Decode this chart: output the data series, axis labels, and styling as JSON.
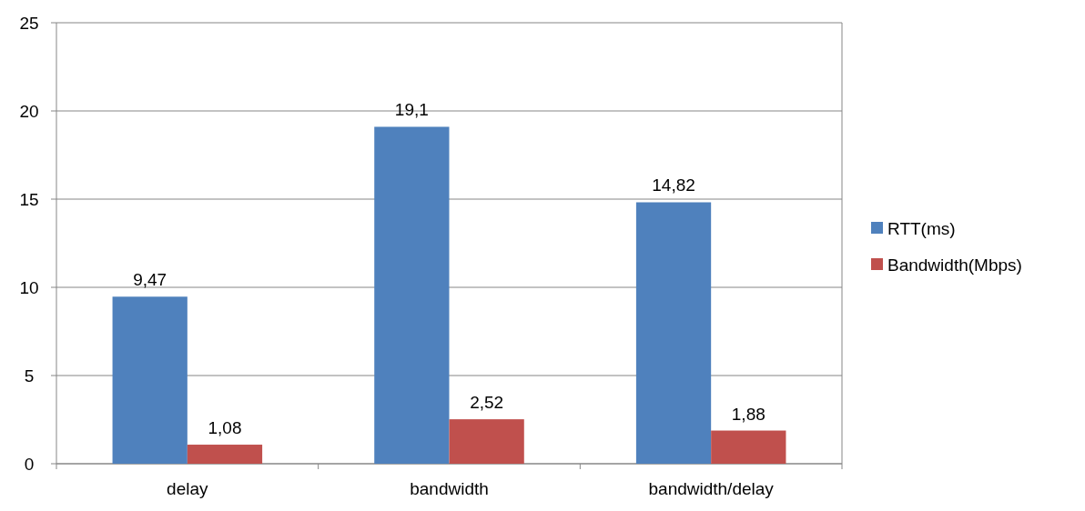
{
  "chart_data": {
    "type": "bar",
    "categories": [
      "delay",
      "bandwidth",
      "bandwidth/delay"
    ],
    "series": [
      {
        "name": "RTT(ms)",
        "color": "#4f81bd",
        "values": [
          9.47,
          19.1,
          14.82
        ],
        "value_labels": [
          "9,47",
          "19,1",
          "14,82"
        ]
      },
      {
        "name": "Bandwidth(Mbps)",
        "color": "#c0504d",
        "values": [
          1.08,
          2.52,
          1.88
        ],
        "value_labels": [
          "1,08",
          "2,52",
          "1,88"
        ]
      }
    ],
    "ylim": [
      0,
      25
    ],
    "yticks": [
      0,
      5,
      10,
      15,
      20,
      25
    ],
    "grid": "y",
    "legend": "right"
  }
}
